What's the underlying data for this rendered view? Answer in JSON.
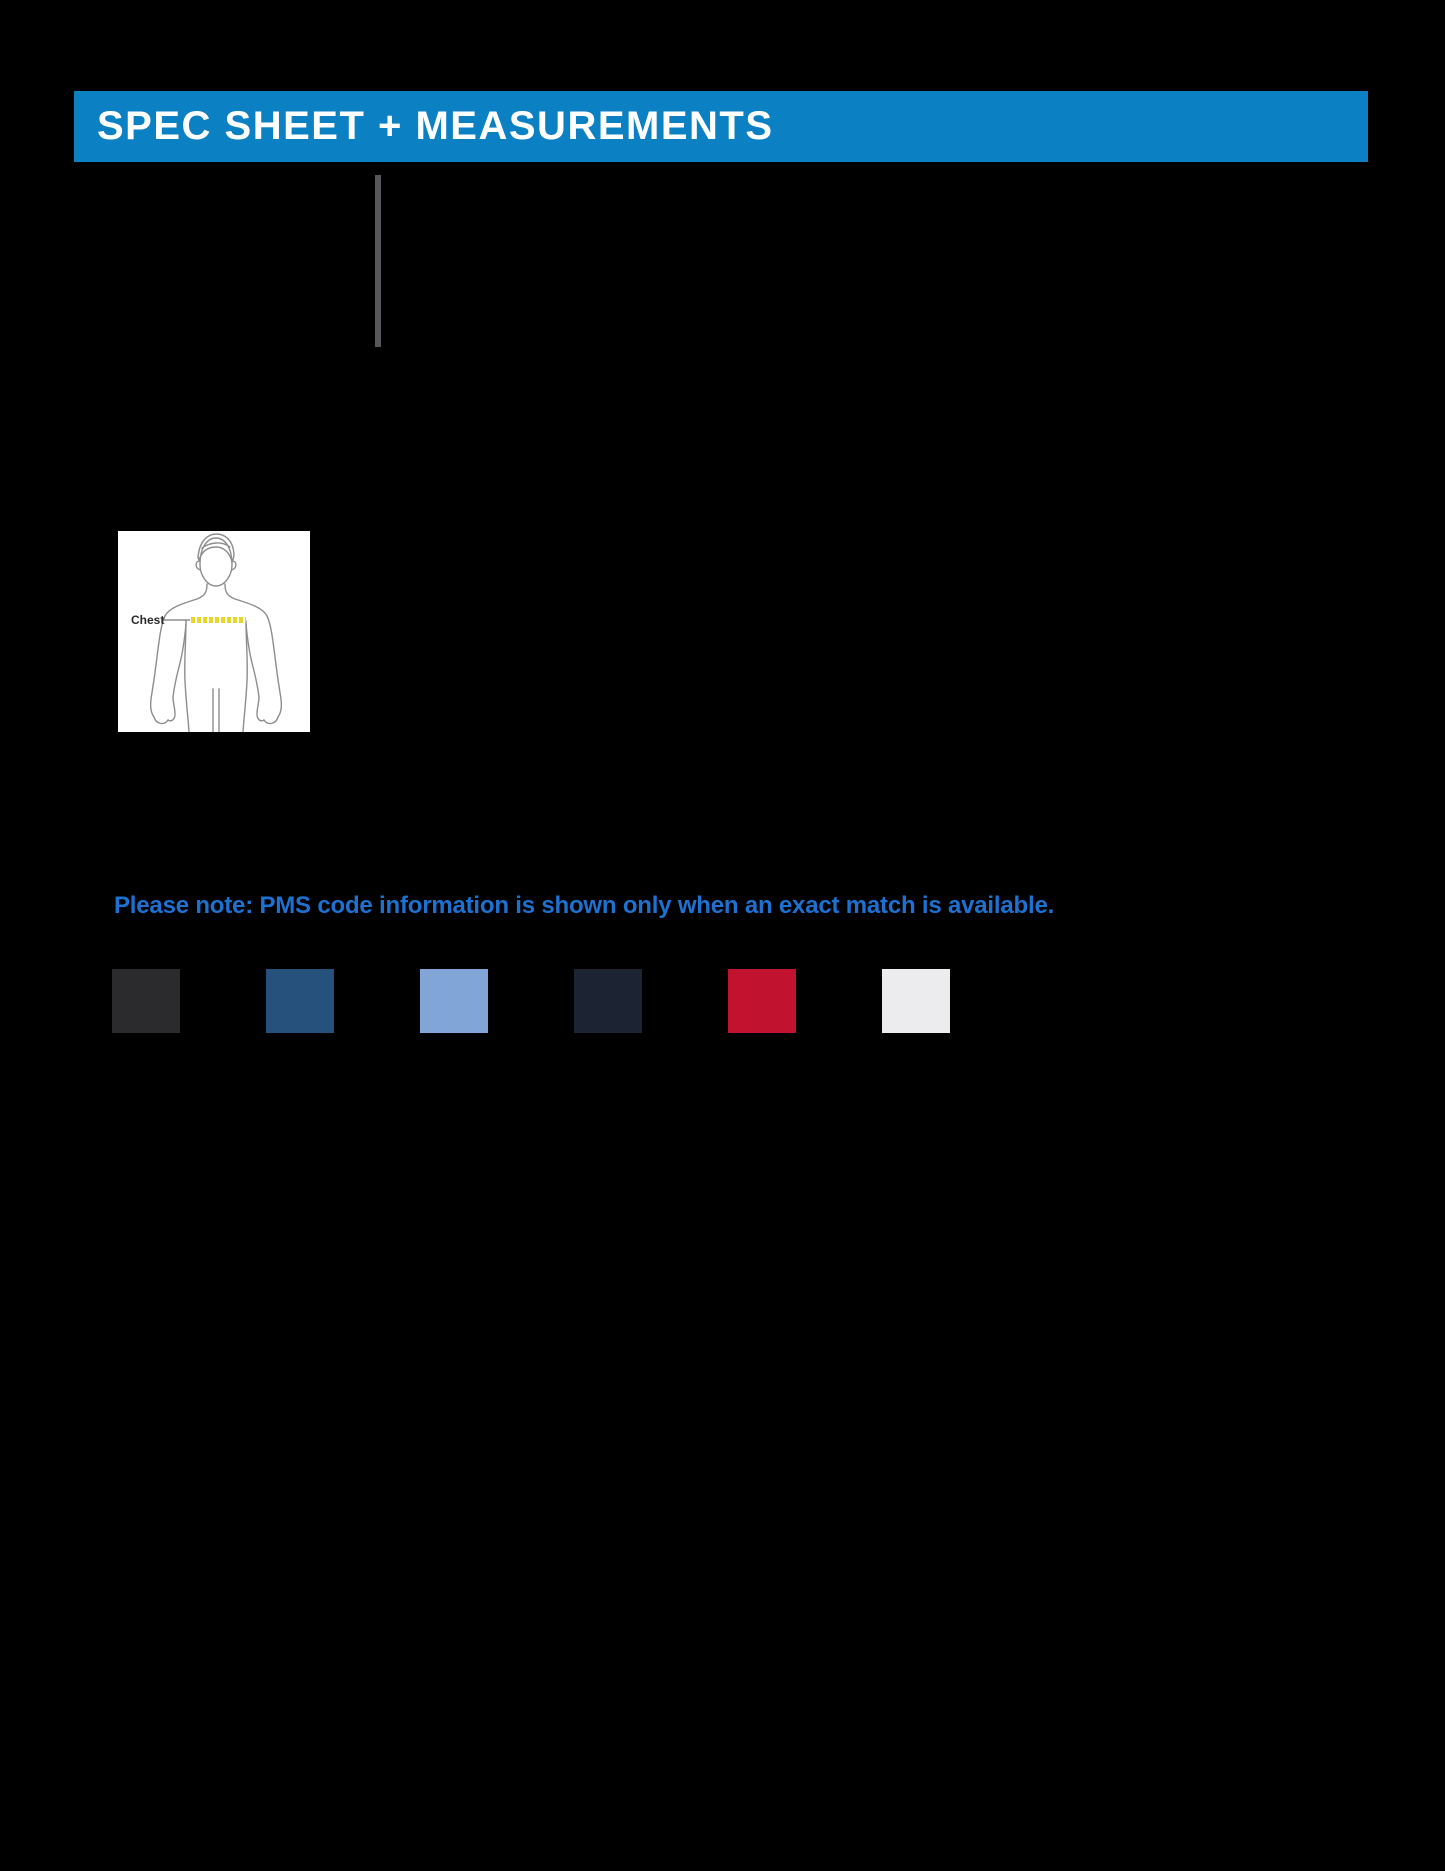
{
  "page": {
    "background": "#000000"
  },
  "header": {
    "title": "SPEC SHEET + MEASUREMENTS",
    "bar_color": "#0b80c3",
    "text_color": "#ffffff"
  },
  "divider": {
    "color": "#56575d"
  },
  "size_diagram": {
    "chest_label": "Chest",
    "tape_color": "#e9d727",
    "outline_color": "#8d8d8d",
    "background": "#ffffff"
  },
  "note": {
    "text": "Please note: PMS code information is shown only when an exact match is available.",
    "color": "#1d71d1"
  },
  "swatches": [
    {
      "name": "black",
      "hex": "#2b2b2e"
    },
    {
      "name": "dark-blue",
      "hex": "#26517c"
    },
    {
      "name": "light-blue",
      "hex": "#82a5d8"
    },
    {
      "name": "navy",
      "hex": "#1c2434"
    },
    {
      "name": "red",
      "hex": "#c1122f"
    },
    {
      "name": "white",
      "hex": "#ececee"
    }
  ]
}
